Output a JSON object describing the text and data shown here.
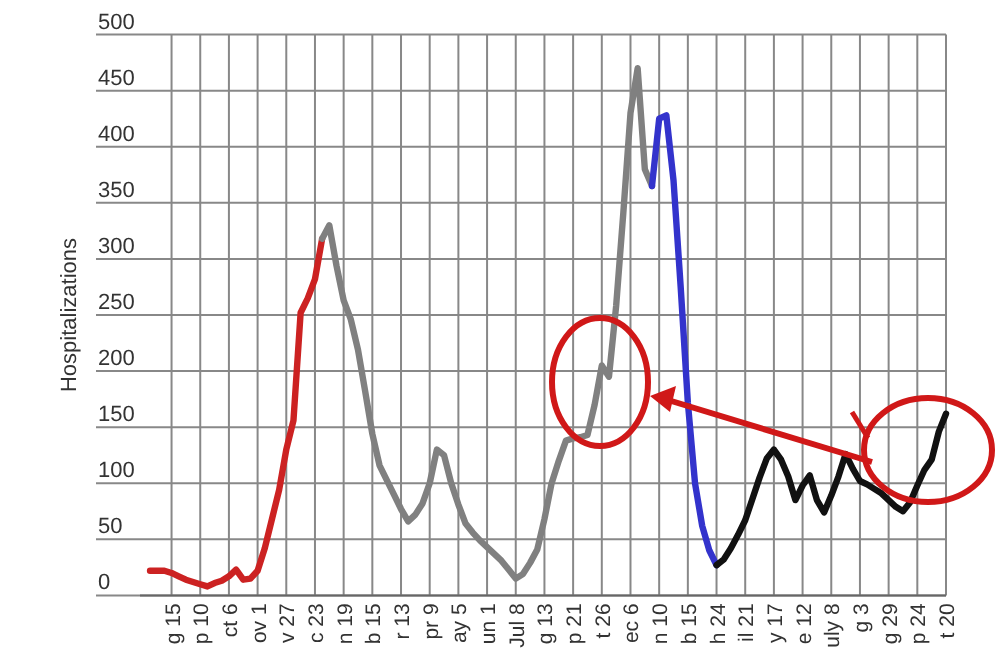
{
  "chart_data": {
    "type": "line",
    "ylabel": "Hospitalizations",
    "ylim": [
      0,
      500
    ],
    "yticks": [
      0,
      50,
      100,
      150,
      200,
      250,
      300,
      350,
      400,
      450,
      500
    ],
    "categories": [
      null,
      null,
      null,
      "g 15",
      null,
      null,
      null,
      "p 10",
      null,
      null,
      null,
      "ct 6",
      null,
      null,
      null,
      "ov 1",
      null,
      null,
      null,
      "v 27",
      null,
      null,
      null,
      "c 23",
      null,
      null,
      null,
      "n 19",
      null,
      null,
      null,
      "b 15",
      null,
      null,
      null,
      "r 13",
      null,
      null,
      null,
      "pr 9",
      null,
      null,
      null,
      "ay 5",
      null,
      null,
      null,
      "un 1",
      null,
      null,
      null,
      "Jul 8",
      null,
      null,
      null,
      "g 13",
      null,
      null,
      null,
      "p 21",
      null,
      null,
      null,
      "t 26",
      null,
      null,
      null,
      "ec 6",
      null,
      null,
      null,
      "n 10",
      null,
      null,
      null,
      "b 15",
      null,
      null,
      null,
      "h 24",
      null,
      null,
      null,
      "il 21",
      null,
      null,
      null,
      "y 17",
      null,
      null,
      null,
      "e 12",
      null,
      null,
      null,
      "uly 8",
      null,
      null,
      null,
      "g 3",
      null,
      null,
      null,
      "g 29",
      null,
      null,
      null,
      "p 24",
      null,
      null,
      null,
      "t 20"
    ],
    "grid": true,
    "marker": "none",
    "line_style": "solid",
    "series": [
      {
        "color": "#cc2222",
        "values": [
          22,
          22,
          22,
          20,
          17,
          14,
          12,
          10,
          8,
          11,
          13,
          17,
          23,
          14,
          15,
          22,
          42,
          68,
          94,
          130,
          156,
          252,
          265,
          282,
          318,
          null,
          null,
          null,
          null,
          null,
          null,
          null,
          null,
          null,
          null,
          null,
          null,
          null,
          null,
          null,
          null,
          null,
          null,
          null,
          null,
          null,
          null,
          null,
          null,
          null,
          null,
          null,
          null,
          null,
          null,
          null,
          null,
          null,
          null,
          null,
          null,
          null,
          null,
          null,
          null,
          null,
          null,
          null,
          null,
          null,
          null,
          null,
          null,
          null,
          null,
          null,
          null,
          null,
          null,
          null,
          null,
          null,
          null,
          null,
          null,
          null,
          null,
          null,
          null,
          null,
          null,
          null,
          null,
          null,
          null,
          null,
          null,
          null,
          null,
          null,
          null,
          null,
          null,
          null,
          null,
          null,
          null,
          null,
          null,
          null,
          null,
          null
        ]
      },
      {
        "color": "#808080",
        "values": [
          null,
          null,
          null,
          null,
          null,
          null,
          null,
          null,
          null,
          null,
          null,
          null,
          null,
          null,
          null,
          null,
          null,
          null,
          null,
          null,
          null,
          null,
          null,
          null,
          318,
          330,
          294,
          263,
          246,
          219,
          182,
          144,
          116,
          103,
          90,
          77,
          66,
          72,
          82,
          100,
          130,
          125,
          100,
          81,
          64,
          56,
          49,
          43,
          37,
          31,
          23,
          15,
          19,
          29,
          41,
          68,
          100,
          120,
          138,
          140,
          141,
          143,
          170,
          205,
          195,
          258,
          341,
          430,
          470,
          380,
          365,
          null,
          null,
          null,
          null,
          null,
          null,
          null,
          null,
          null,
          null,
          null,
          null,
          null,
          null,
          null,
          null,
          null,
          null,
          null,
          null,
          null,
          null,
          null,
          null,
          null,
          null,
          null,
          null,
          null,
          null,
          null,
          null,
          null,
          null,
          null,
          null,
          null,
          null,
          null,
          null,
          null
        ]
      },
      {
        "color": "#3333cc",
        "values": [
          null,
          null,
          null,
          null,
          null,
          null,
          null,
          null,
          null,
          null,
          null,
          null,
          null,
          null,
          null,
          null,
          null,
          null,
          null,
          null,
          null,
          null,
          null,
          null,
          null,
          null,
          null,
          null,
          null,
          null,
          null,
          null,
          null,
          null,
          null,
          null,
          null,
          null,
          null,
          null,
          null,
          null,
          null,
          null,
          null,
          null,
          null,
          null,
          null,
          null,
          null,
          null,
          null,
          null,
          null,
          null,
          null,
          null,
          null,
          null,
          null,
          null,
          null,
          null,
          null,
          null,
          null,
          null,
          null,
          null,
          365,
          425,
          428,
          370,
          275,
          172,
          100,
          62,
          40,
          27,
          null,
          null,
          null,
          null,
          null,
          null,
          null,
          null,
          null,
          null,
          null,
          null,
          null,
          null,
          null,
          null,
          null,
          null,
          null,
          null,
          null,
          null,
          null,
          null,
          null,
          null,
          null,
          null,
          null,
          null,
          null,
          null
        ]
      },
      {
        "color": "#111111",
        "values": [
          null,
          null,
          null,
          null,
          null,
          null,
          null,
          null,
          null,
          null,
          null,
          null,
          null,
          null,
          null,
          null,
          null,
          null,
          null,
          null,
          null,
          null,
          null,
          null,
          null,
          null,
          null,
          null,
          null,
          null,
          null,
          null,
          null,
          null,
          null,
          null,
          null,
          null,
          null,
          null,
          null,
          null,
          null,
          null,
          null,
          null,
          null,
          null,
          null,
          null,
          null,
          null,
          null,
          null,
          null,
          null,
          null,
          null,
          null,
          null,
          null,
          null,
          null,
          null,
          null,
          null,
          null,
          null,
          null,
          null,
          null,
          null,
          null,
          null,
          null,
          null,
          null,
          null,
          null,
          27,
          32,
          42,
          54,
          67,
          86,
          105,
          122,
          130,
          121,
          106,
          85,
          98,
          107,
          85,
          74,
          89,
          106,
          126,
          113,
          102,
          99,
          95,
          91,
          85,
          79,
          75,
          83,
          98,
          112,
          121,
          146,
          162
        ]
      }
    ]
  }
}
